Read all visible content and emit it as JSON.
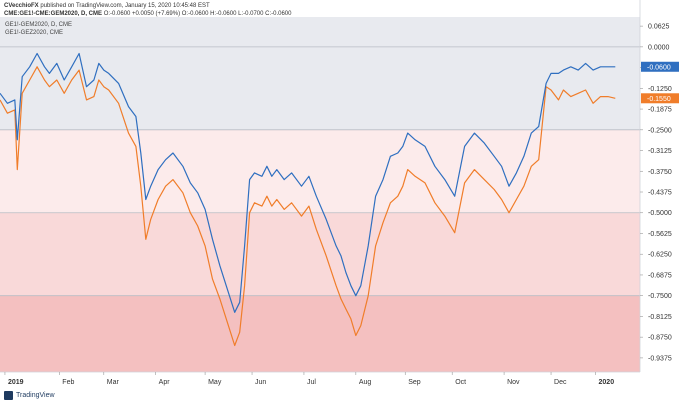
{
  "header": {
    "publisher_name": "CVecchioFX",
    "publisher_suffix": "published on TradingView.com, January 15, 2020 10:45:48 EST",
    "symbol": "CME:GE1!-CME:GEM2020, D, CME",
    "ohlc_text": "O:-0.0600  +0.0050 (+7.69%)  O:-0.0600  H:-0.0600  L:-0.0700  C:-0.0600"
  },
  "legend": {
    "primary": "GE1!-GEM2020, D, CME",
    "secondary": "GE1!-GEZ2020, CME"
  },
  "brand": {
    "label": "TradingView",
    "icon": "tradingview-logo-icon"
  },
  "colors": {
    "primary_series": "#2f6fc0",
    "secondary_series": "#f07d2a",
    "band_top": "#e8eaef",
    "band_1": "#fcebeb",
    "band_2": "#f9d9d9",
    "band_3": "#f4c0c0"
  },
  "chart_data": {
    "type": "line",
    "title": "",
    "xlabel": "",
    "ylabel": "",
    "ylim": [
      -0.98,
      0.09
    ],
    "y_ticks": [
      0.0625,
      0.0,
      -0.0625,
      -0.125,
      -0.1875,
      -0.25,
      -0.3125,
      -0.375,
      -0.4375,
      -0.5,
      -0.5625,
      -0.625,
      -0.6875,
      -0.75,
      -0.8125,
      -0.875,
      -0.9375
    ],
    "y_tick_labels": [
      "0.0625",
      "0.0000",
      "-0.0625",
      "-0.1250",
      "-0.1875",
      "-0.2500",
      "-0.3125",
      "-0.3750",
      "-0.4375",
      "-0.5000",
      "-0.5625",
      "-0.6250",
      "-0.6875",
      "-0.7500",
      "-0.8125",
      "-0.8750",
      "-0.9375"
    ],
    "x_tick_labels": [
      "2019",
      "Feb",
      "Mar",
      "Apr",
      "May",
      "Jun",
      "Jul",
      "Aug",
      "Sep",
      "Oct",
      "Nov",
      "Dec",
      "2020"
    ],
    "x_tick_positions": [
      0.1,
      1.2,
      2.1,
      3.15,
      4.15,
      5.1,
      6.15,
      7.2,
      8.2,
      9.15,
      10.2,
      11.15,
      12.05
    ],
    "xlim": [
      0,
      12.95
    ],
    "bands": [
      {
        "from": 0.09,
        "to": 0.0,
        "color_key": "band_top"
      },
      {
        "from": 0.0,
        "to": -0.25,
        "color_key": "band_top"
      },
      {
        "from": -0.25,
        "to": -0.5,
        "color_key": "band_1"
      },
      {
        "from": -0.5,
        "to": -0.75,
        "color_key": "band_2"
      },
      {
        "from": -0.75,
        "to": -0.98,
        "color_key": "band_3"
      }
    ],
    "band_lines": [
      0.0,
      -0.25,
      -0.5,
      -0.75
    ],
    "series": [
      {
        "color_key": "primary_series",
        "last_value_label": "-0.0600",
        "x": [
          0.0,
          0.15,
          0.3,
          0.35,
          0.45,
          0.6,
          0.75,
          0.9,
          1.0,
          1.15,
          1.3,
          1.45,
          1.6,
          1.75,
          1.9,
          2.0,
          2.1,
          2.2,
          2.4,
          2.6,
          2.75,
          2.85,
          2.95,
          3.05,
          3.2,
          3.35,
          3.5,
          3.7,
          3.85,
          4.0,
          4.15,
          4.3,
          4.45,
          4.6,
          4.75,
          4.85,
          4.95,
          5.05,
          5.15,
          5.3,
          5.4,
          5.5,
          5.6,
          5.75,
          5.9,
          6.1,
          6.25,
          6.4,
          6.6,
          6.8,
          6.9,
          7.0,
          7.1,
          7.2,
          7.3,
          7.45,
          7.6,
          7.75,
          7.9,
          8.05,
          8.15,
          8.25,
          8.4,
          8.6,
          8.8,
          9.0,
          9.2,
          9.4,
          9.6,
          9.8,
          10.0,
          10.15,
          10.3,
          10.45,
          10.6,
          10.75,
          10.9,
          11.05,
          11.15,
          11.3,
          11.4,
          11.55,
          11.7,
          11.85,
          12.0,
          12.15,
          12.3,
          12.45
        ],
        "y": [
          -0.14,
          -0.17,
          -0.16,
          -0.28,
          -0.09,
          -0.06,
          -0.02,
          -0.06,
          -0.08,
          -0.05,
          -0.1,
          -0.06,
          -0.02,
          -0.12,
          -0.1,
          -0.05,
          -0.07,
          -0.08,
          -0.11,
          -0.18,
          -0.21,
          -0.32,
          -0.46,
          -0.42,
          -0.37,
          -0.34,
          -0.32,
          -0.36,
          -0.41,
          -0.44,
          -0.49,
          -0.58,
          -0.66,
          -0.73,
          -0.8,
          -0.77,
          -0.6,
          -0.4,
          -0.38,
          -0.39,
          -0.36,
          -0.39,
          -0.37,
          -0.4,
          -0.38,
          -0.42,
          -0.39,
          -0.45,
          -0.52,
          -0.6,
          -0.63,
          -0.68,
          -0.72,
          -0.75,
          -0.72,
          -0.6,
          -0.45,
          -0.4,
          -0.33,
          -0.32,
          -0.3,
          -0.26,
          -0.28,
          -0.3,
          -0.36,
          -0.4,
          -0.45,
          -0.3,
          -0.26,
          -0.29,
          -0.33,
          -0.36,
          -0.42,
          -0.38,
          -0.33,
          -0.26,
          -0.24,
          -0.11,
          -0.08,
          -0.08,
          -0.07,
          -0.06,
          -0.07,
          -0.05,
          -0.07,
          -0.06,
          -0.06,
          -0.06
        ]
      },
      {
        "color_key": "secondary_series",
        "last_value_label": "-0.1550",
        "x": [
          0.0,
          0.15,
          0.3,
          0.35,
          0.45,
          0.6,
          0.75,
          0.9,
          1.0,
          1.15,
          1.3,
          1.45,
          1.6,
          1.75,
          1.9,
          2.0,
          2.1,
          2.2,
          2.4,
          2.6,
          2.75,
          2.85,
          2.95,
          3.05,
          3.2,
          3.35,
          3.5,
          3.7,
          3.85,
          4.0,
          4.15,
          4.3,
          4.45,
          4.6,
          4.75,
          4.85,
          4.95,
          5.05,
          5.15,
          5.3,
          5.4,
          5.5,
          5.6,
          5.75,
          5.9,
          6.1,
          6.25,
          6.4,
          6.6,
          6.8,
          6.9,
          7.0,
          7.1,
          7.2,
          7.3,
          7.45,
          7.6,
          7.75,
          7.9,
          8.05,
          8.15,
          8.25,
          8.4,
          8.6,
          8.8,
          9.0,
          9.2,
          9.4,
          9.6,
          9.8,
          10.0,
          10.15,
          10.3,
          10.45,
          10.6,
          10.75,
          10.9,
          11.05,
          11.15,
          11.3,
          11.4,
          11.55,
          11.7,
          11.85,
          12.0,
          12.15,
          12.3,
          12.45
        ],
        "y": [
          -0.16,
          -0.2,
          -0.19,
          -0.37,
          -0.14,
          -0.1,
          -0.06,
          -0.1,
          -0.12,
          -0.1,
          -0.14,
          -0.1,
          -0.07,
          -0.16,
          -0.15,
          -0.1,
          -0.12,
          -0.13,
          -0.17,
          -0.26,
          -0.3,
          -0.42,
          -0.58,
          -0.52,
          -0.46,
          -0.42,
          -0.4,
          -0.44,
          -0.5,
          -0.54,
          -0.6,
          -0.7,
          -0.76,
          -0.83,
          -0.9,
          -0.86,
          -0.72,
          -0.5,
          -0.47,
          -0.48,
          -0.45,
          -0.48,
          -0.46,
          -0.49,
          -0.47,
          -0.51,
          -0.48,
          -0.55,
          -0.63,
          -0.72,
          -0.76,
          -0.79,
          -0.82,
          -0.87,
          -0.84,
          -0.75,
          -0.6,
          -0.53,
          -0.47,
          -0.45,
          -0.42,
          -0.37,
          -0.39,
          -0.41,
          -0.47,
          -0.51,
          -0.56,
          -0.41,
          -0.37,
          -0.4,
          -0.43,
          -0.46,
          -0.5,
          -0.46,
          -0.42,
          -0.36,
          -0.34,
          -0.12,
          -0.13,
          -0.16,
          -0.13,
          -0.15,
          -0.14,
          -0.13,
          -0.17,
          -0.15,
          -0.15,
          -0.155
        ]
      }
    ]
  }
}
